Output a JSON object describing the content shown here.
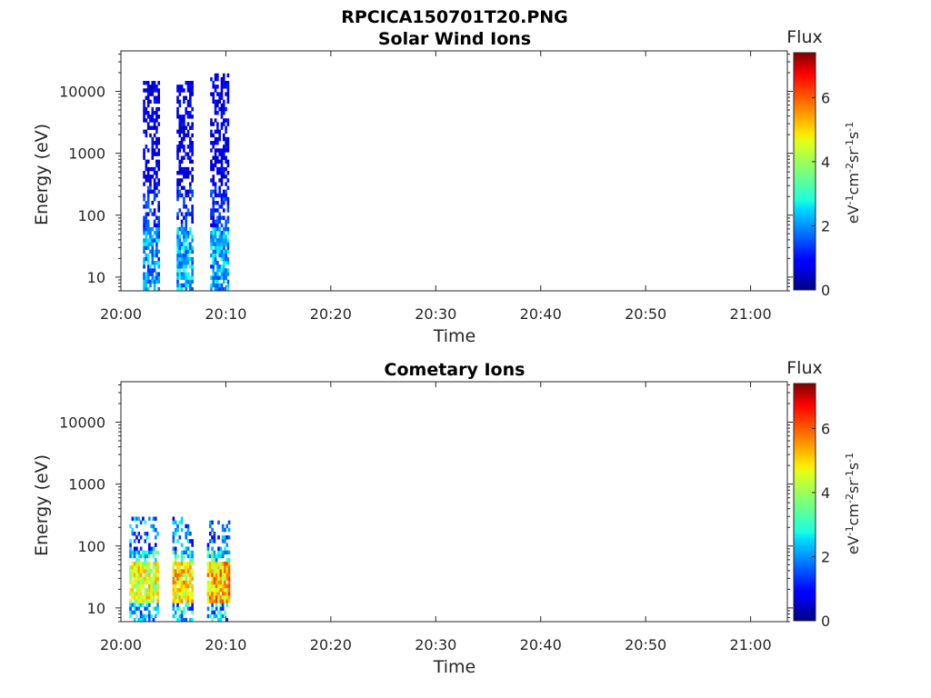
{
  "figure": {
    "title": "RPCICA150701T20.PNG"
  },
  "chart_data": [
    {
      "type": "heatmap",
      "title": "Solar Wind Ions",
      "xlabel": "Time",
      "ylabel": "Energy (eV)",
      "x_ticks": [
        "20:00",
        "20:10",
        "20:20",
        "20:30",
        "20:40",
        "20:50",
        "21:00"
      ],
      "x_range_minutes": [
        0,
        63.5
      ],
      "y_scale": "log",
      "y_ticks": [
        "10",
        "100",
        "1000",
        "10000"
      ],
      "y_range": [
        6,
        45000
      ],
      "colorbar": {
        "label": "Flux",
        "unit": "eV-1cm-2sr-1s-1",
        "range": [
          0,
          7.4
        ],
        "ticks": [
          "0",
          "2",
          "4",
          "6"
        ],
        "colormap": "jet"
      },
      "bursts": [
        {
          "t_start": 2.1,
          "t_end": 3.6,
          "e_max": 14000,
          "low_peak": 2.8
        },
        {
          "t_start": 5.3,
          "t_end": 6.8,
          "e_max": 14000,
          "low_peak": 3.2
        },
        {
          "t_start": 8.5,
          "t_end": 10.1,
          "e_max": 19000,
          "low_peak": 3.0
        }
      ]
    },
    {
      "type": "heatmap",
      "title": "Cometary Ions",
      "xlabel": "Time",
      "ylabel": "Energy (eV)",
      "x_ticks": [
        "20:00",
        "20:10",
        "20:20",
        "20:30",
        "20:40",
        "20:50",
        "21:00"
      ],
      "x_range_minutes": [
        0,
        63.5
      ],
      "y_scale": "log",
      "y_ticks": [
        "10",
        "100",
        "1000",
        "10000"
      ],
      "y_range": [
        6,
        45000
      ],
      "colorbar": {
        "label": "Flux",
        "unit": "eV-1cm-2sr-1s-1",
        "range": [
          0,
          7.4
        ],
        "ticks": [
          "0",
          "2",
          "4",
          "6"
        ],
        "colormap": "jet"
      },
      "bursts": [
        {
          "t_start": 0.8,
          "t_end": 3.6,
          "e_max": 300,
          "low_peak": 5.4
        },
        {
          "t_start": 4.9,
          "t_end": 6.9,
          "e_max": 300,
          "low_peak": 5.8
        },
        {
          "t_start": 8.2,
          "t_end": 10.2,
          "e_max": 250,
          "low_peak": 6.1
        }
      ]
    }
  ]
}
